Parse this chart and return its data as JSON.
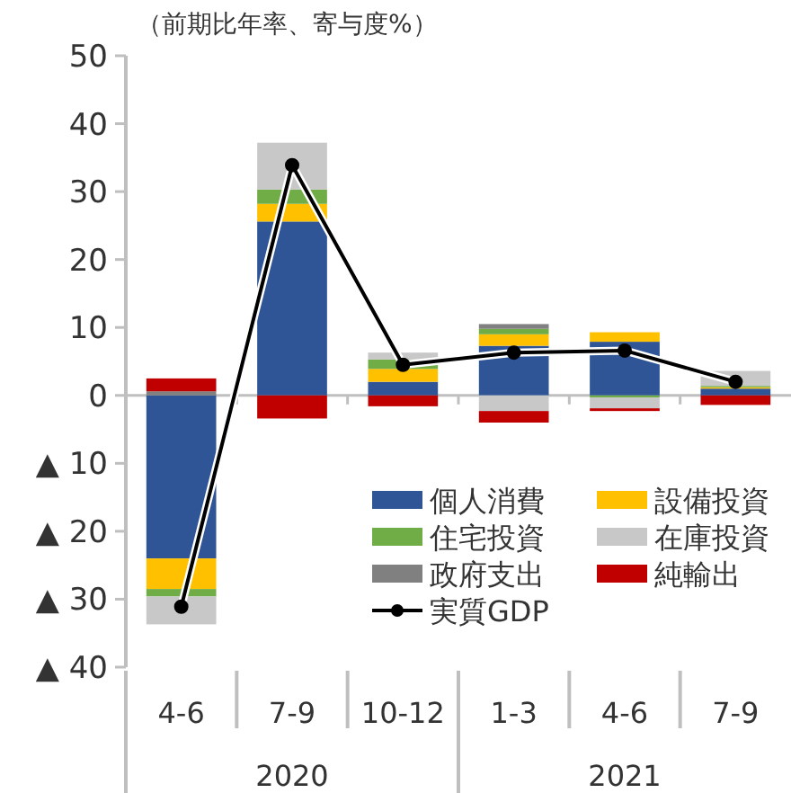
{
  "chart_data": {
    "type": "bar",
    "stacked": true,
    "title": "（前期比年率、寄与度%）",
    "categories": [
      "4-6",
      "7-9",
      "10-12",
      "1-3",
      "4-6",
      "7-9"
    ],
    "series": [
      {
        "name": "個人消費",
        "color": "#2f5597",
        "values": [
          -24.0,
          25.6,
          2.0,
          7.3,
          7.9,
          1.0
        ]
      },
      {
        "name": "設備投資",
        "color": "#ffc000",
        "values": [
          -4.5,
          2.6,
          1.9,
          1.7,
          1.4,
          0.2
        ]
      },
      {
        "name": "住宅投資",
        "color": "#70ad47",
        "values": [
          -1.1,
          2.1,
          1.4,
          0.8,
          -0.3,
          0.2
        ]
      },
      {
        "name": "在庫投資",
        "color": "#c8c8c8",
        "values": [
          -4.1,
          6.9,
          1.0,
          -2.3,
          -1.6,
          2.2
        ]
      },
      {
        "name": "政府支出",
        "color": "#808080",
        "values": [
          0.6,
          0,
          0,
          0.7,
          0,
          0
        ]
      },
      {
        "name": "純輸出",
        "color": "#c00000",
        "values": [
          1.9,
          -3.4,
          -1.6,
          -1.7,
          -0.4,
          -1.4
        ]
      },
      {
        "name": "実質GDP",
        "type": "line",
        "color": "#000000",
        "marker": "circle",
        "values": [
          -31.1,
          33.9,
          4.5,
          6.3,
          6.6,
          2.0
        ]
      }
    ],
    "ylim": [
      -40,
      50
    ],
    "yticks": [
      {
        "value": -40,
        "label": "▲ 40"
      },
      {
        "value": -30,
        "label": "▲ 30"
      },
      {
        "value": -20,
        "label": "▲ 20"
      },
      {
        "value": -10,
        "label": "▲ 10"
      },
      0,
      10,
      20,
      30,
      40,
      50
    ],
    "annotations": [
      "2020",
      "2021"
    ],
    "legend": "bottom right"
  }
}
